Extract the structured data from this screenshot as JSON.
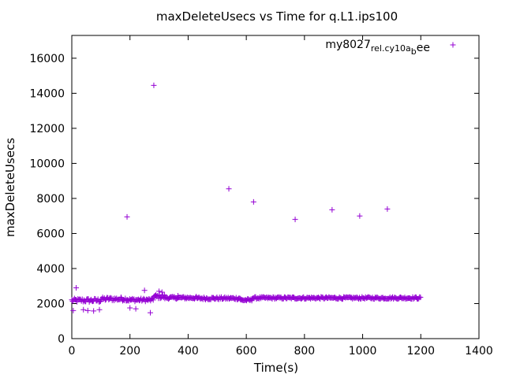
{
  "chart_data": {
    "type": "scatter",
    "title": "maxDeleteUsecs vs Time for q.L1.ips100",
    "xlabel": "Time(s)",
    "ylabel": "maxDeleteUsecs",
    "xlim": [
      0,
      1400
    ],
    "ylim": [
      0,
      17300
    ],
    "xticks": [
      0,
      200,
      400,
      600,
      800,
      1000,
      1200,
      1400
    ],
    "yticks": [
      0,
      2000,
      4000,
      6000,
      8000,
      10000,
      12000,
      14000,
      16000
    ],
    "grid": false,
    "legend_position": "top-right",
    "marker": "+",
    "series": [
      {
        "name": "my8027_rel.cy10a_bee",
        "name_parts": [
          "my8027",
          "rel.cy10a",
          "b",
          "ee"
        ],
        "color": "#9400d3",
        "points": [
          [
            190,
            6950
          ],
          [
            282,
            14450
          ],
          [
            540,
            8550
          ],
          [
            625,
            7800
          ],
          [
            768,
            6800
          ],
          [
            895,
            7350
          ],
          [
            990,
            7000
          ],
          [
            1085,
            7400
          ],
          [
            15,
            2900
          ],
          [
            5,
            1600
          ],
          [
            40,
            1650
          ],
          [
            55,
            1600
          ],
          [
            75,
            1580
          ],
          [
            95,
            1650
          ],
          [
            200,
            1750
          ],
          [
            220,
            1700
          ],
          [
            270,
            1480
          ],
          [
            250,
            2750
          ],
          [
            300,
            2700
          ],
          [
            310,
            2650
          ],
          [
            130,
            2300
          ],
          [
            170,
            2350
          ],
          [
            365,
            2450
          ]
        ],
        "bands": [
          {
            "x0": 0,
            "x1": 100,
            "mean": 2180,
            "spread": 110
          },
          {
            "x0": 100,
            "x1": 190,
            "mean": 2260,
            "spread": 100
          },
          {
            "x0": 190,
            "x1": 280,
            "mean": 2210,
            "spread": 90
          },
          {
            "x0": 280,
            "x1": 320,
            "mean": 2400,
            "spread": 120
          },
          {
            "x0": 320,
            "x1": 430,
            "mean": 2330,
            "spread": 70
          },
          {
            "x0": 430,
            "x1": 580,
            "mean": 2300,
            "spread": 70
          },
          {
            "x0": 580,
            "x1": 620,
            "mean": 2200,
            "spread": 70
          },
          {
            "x0": 620,
            "x1": 1200,
            "mean": 2320,
            "spread": 60
          }
        ]
      }
    ]
  }
}
